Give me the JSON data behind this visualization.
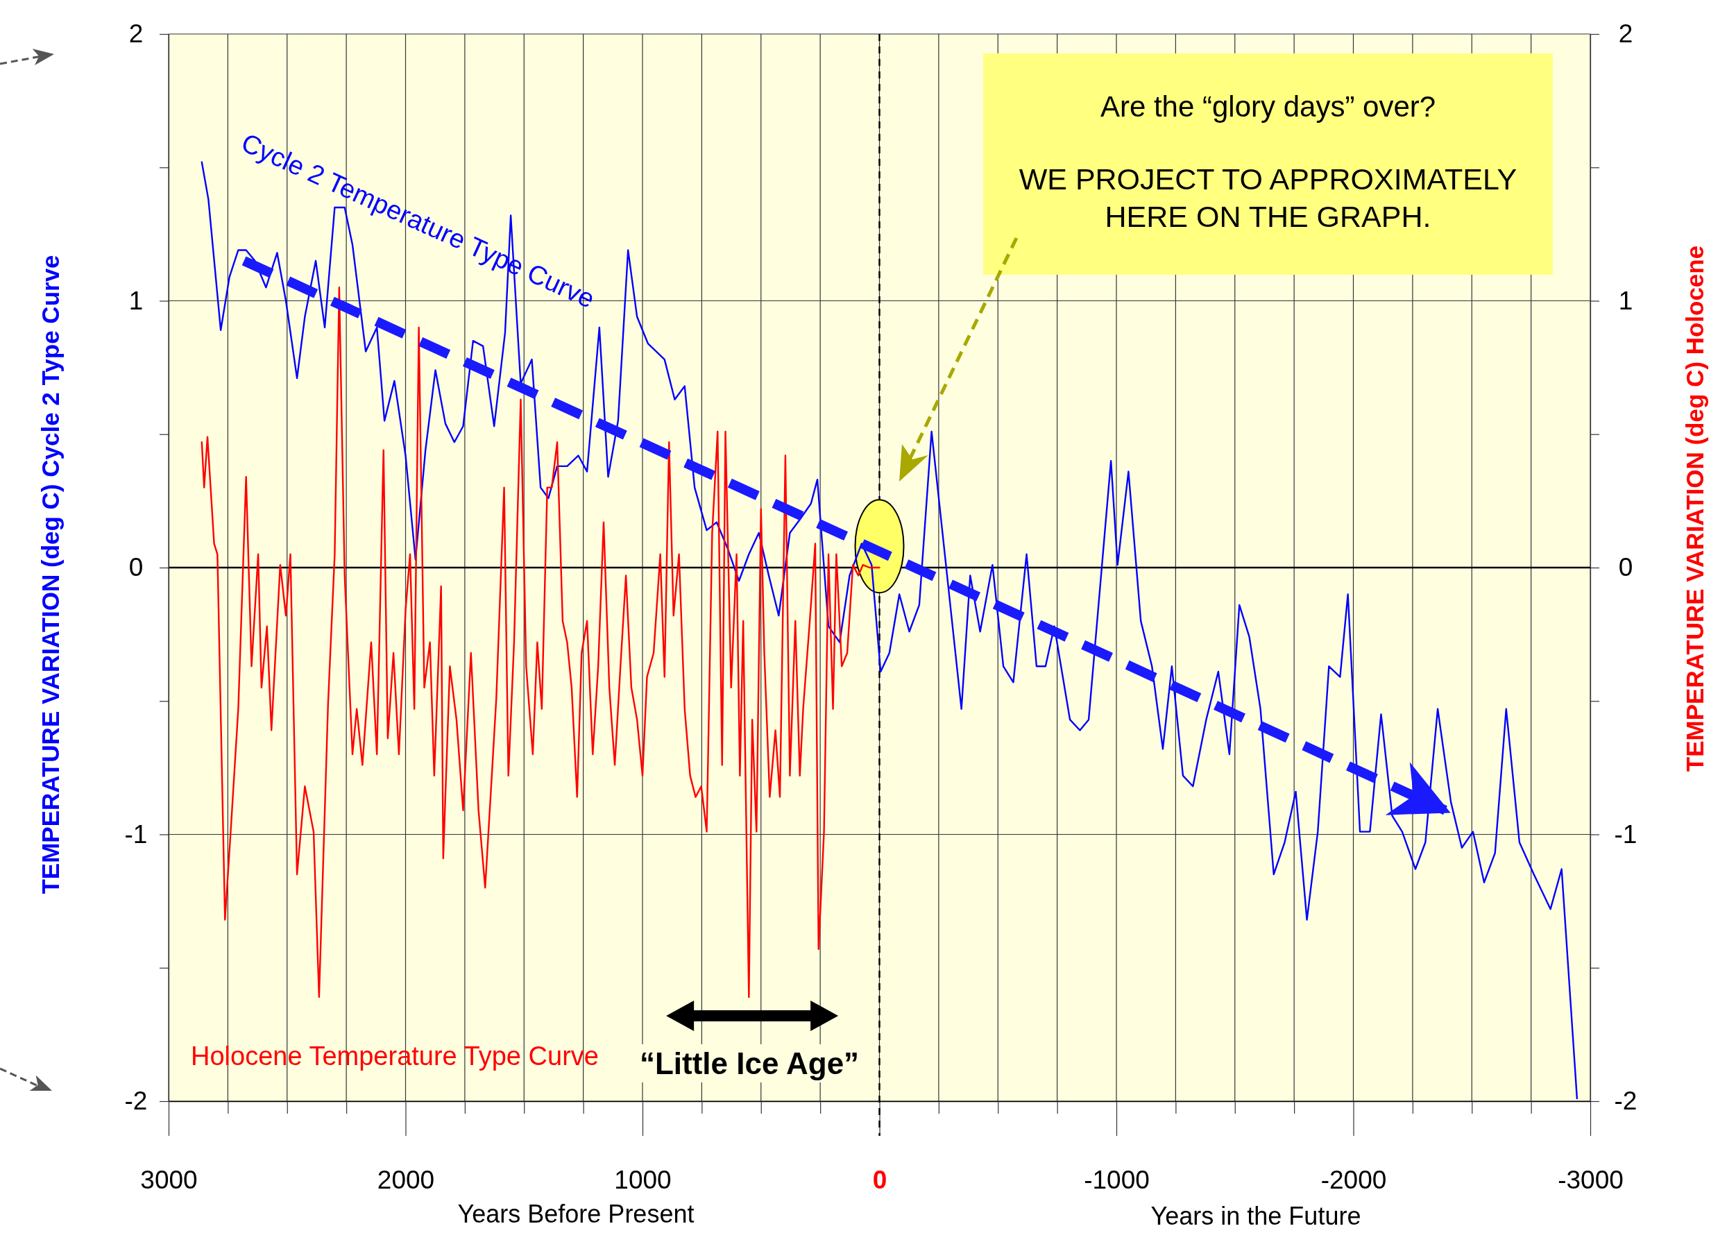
{
  "chart_data": {
    "type": "line",
    "xlabel": "Years Before Present",
    "ylabel": "TEMPERATURE VARIATION (deg C)  Cycle 2 Type Curve",
    "y2label": "TEMPERATURE VARIATION (deg C) Holocene",
    "xlim": [
      3000,
      -3000
    ],
    "xticks": [
      3000,
      {
        "value": 2750,
        "label": null
      },
      {
        "value": 2500,
        "label": null
      },
      {
        "value": 2250,
        "label": null
      },
      2000,
      {
        "value": 1750,
        "label": null
      },
      {
        "value": 1500,
        "label": null
      },
      {
        "value": 1250,
        "label": null
      },
      1000,
      {
        "value": 750,
        "label": null
      },
      {
        "value": 500,
        "label": null
      },
      {
        "value": 250,
        "label": null
      },
      0,
      {
        "value": -250,
        "label": null
      },
      {
        "value": -500,
        "label": null
      },
      {
        "value": -750,
        "label": null
      },
      -1000,
      {
        "value": -1250,
        "label": null
      },
      {
        "value": -1500,
        "label": null
      },
      {
        "value": -1750,
        "label": null
      },
      -2000,
      {
        "value": -2250,
        "label": null
      },
      {
        "value": -2500,
        "label": null
      },
      {
        "value": -2750,
        "label": null
      },
      -3000
    ],
    "ylim": [
      -2,
      2
    ],
    "yticks": [
      -2,
      {
        "value": -1.5,
        "label": null
      },
      -1,
      {
        "value": -0.5,
        "label": null
      },
      0,
      {
        "value": 0.5,
        "label": null
      },
      1,
      {
        "value": 1.5,
        "label": null
      },
      2
    ],
    "y2lim": [
      -2,
      2
    ],
    "y2ticks": [
      -2,
      {
        "value": -1.5,
        "label": null
      },
      -1,
      {
        "value": -0.5,
        "label": null
      },
      0,
      {
        "value": 0.5,
        "label": null
      },
      1,
      {
        "value": 1.5,
        "label": null
      },
      2
    ],
    "grid": true,
    "series": [
      {
        "name": "Cycle 2 Temperature Type Curve",
        "color": "#0000ff",
        "x": [
          2860,
          2832,
          2780,
          2743,
          2706,
          2673,
          2636,
          2589,
          2542,
          2505,
          2458,
          2425,
          2379,
          2341,
          2299,
          2257,
          2224,
          2168,
          2121,
          2089,
          2047,
          2000,
          1958,
          1916,
          1874,
          1832,
          1794,
          1757,
          1715,
          1673,
          1626,
          1580,
          1556,
          1514,
          1467,
          1430,
          1397,
          1360,
          1318,
          1271,
          1234,
          1182,
          1145,
          1103,
          1061,
          1023,
          977,
          907,
          864,
          822,
          780,
          729,
          687,
          640,
          593,
          551,
          509,
          467,
          425,
          378,
          336,
          289,
          262,
          215,
          168,
          126,
          75,
          33,
          -5,
          -42,
          -84,
          -126,
          -168,
          -220,
          -271,
          -346,
          -383,
          -425,
          -477,
          -523,
          -565,
          -621,
          -663,
          -701,
          -738,
          -804,
          -846,
          -883,
          -977,
          -1005,
          -1051,
          -1103,
          -1150,
          -1196,
          -1234,
          -1281,
          -1323,
          -1379,
          -1430,
          -1477,
          -1519,
          -1561,
          -1608,
          -1664,
          -1710,
          -1757,
          -1804,
          -1850,
          -1897,
          -1944,
          -1977,
          -2028,
          -2070,
          -2117,
          -2164,
          -2206,
          -2262,
          -2304,
          -2356,
          -2412,
          -2458,
          -2505,
          -2552,
          -2598,
          -2645,
          -2701,
          -2762,
          -2832,
          -2879,
          -2944
        ],
        "values": [
          1.52,
          1.38,
          0.89,
          1.09,
          1.19,
          1.19,
          1.15,
          1.05,
          1.18,
          1.0,
          0.71,
          0.94,
          1.15,
          0.9,
          1.35,
          1.35,
          1.21,
          0.81,
          0.9,
          0.55,
          0.7,
          0.42,
          0.03,
          0.44,
          0.74,
          0.54,
          0.47,
          0.53,
          0.85,
          0.83,
          0.53,
          0.88,
          1.32,
          0.69,
          0.78,
          0.3,
          0.26,
          0.38,
          0.38,
          0.42,
          0.36,
          0.9,
          0.34,
          0.55,
          1.19,
          0.94,
          0.84,
          0.78,
          0.63,
          0.68,
          0.3,
          0.14,
          0.17,
          0.07,
          -0.05,
          0.05,
          0.13,
          -0.03,
          -0.18,
          0.13,
          0.18,
          0.24,
          0.33,
          -0.22,
          -0.28,
          -0.03,
          0.09,
          0.01,
          -0.39,
          -0.32,
          -0.1,
          -0.24,
          -0.14,
          0.51,
          0.09,
          -0.53,
          -0.03,
          -0.24,
          0.01,
          -0.37,
          -0.43,
          0.05,
          -0.37,
          -0.37,
          -0.22,
          -0.57,
          -0.61,
          -0.57,
          0.4,
          0.01,
          0.36,
          -0.2,
          -0.37,
          -0.68,
          -0.37,
          -0.78,
          -0.82,
          -0.57,
          -0.39,
          -0.7,
          -0.14,
          -0.26,
          -0.53,
          -1.15,
          -1.03,
          -0.84,
          -1.32,
          -0.99,
          -0.37,
          -0.41,
          -0.1,
          -0.99,
          -0.99,
          -0.55,
          -0.93,
          -0.99,
          -1.13,
          -1.03,
          -0.53,
          -0.88,
          -1.05,
          -0.99,
          -1.18,
          -1.07,
          -0.53,
          -1.03,
          -1.15,
          -1.28,
          -1.13,
          -1.99
        ]
      },
      {
        "name": "Holocene Temperature Type Curve",
        "color": "#ff0000",
        "axis": "y2",
        "x": [
          2860,
          2850,
          2836,
          2808,
          2794,
          2762,
          2738,
          2706,
          2673,
          2650,
          2622,
          2608,
          2585,
          2566,
          2529,
          2505,
          2486,
          2458,
          2425,
          2388,
          2365,
          2327,
          2299,
          2280,
          2257,
          2224,
          2206,
          2182,
          2145,
          2121,
          2093,
          2075,
          2051,
          2028,
          2000,
          1981,
          1963,
          1944,
          1921,
          1897,
          1879,
          1850,
          1841,
          1813,
          1785,
          1757,
          1724,
          1692,
          1664,
          1636,
          1617,
          1584,
          1566,
          1542,
          1514,
          1491,
          1463,
          1444,
          1425,
          1402,
          1383,
          1360,
          1337,
          1318,
          1299,
          1276,
          1257,
          1234,
          1210,
          1187,
          1164,
          1140,
          1117,
          1093,
          1070,
          1047,
          1023,
          1000,
          981,
          953,
          925,
          907,
          888,
          869,
          846,
          822,
          799,
          776,
          752,
          729,
          706,
          683,
          664,
          650,
          626,
          603,
          589,
          575,
          551,
          537,
          519,
          500,
          486,
          463,
          439,
          420,
          397,
          378,
          355,
          336,
          322,
          294,
          271,
          257,
          234,
          215,
          196,
          182,
          159,
          136,
          112,
          89,
          70,
          42,
          0
        ],
        "values": [
          0.47,
          0.3,
          0.49,
          0.09,
          0.05,
          -1.32,
          -0.99,
          -0.53,
          0.34,
          -0.37,
          0.05,
          -0.45,
          -0.22,
          -0.61,
          0.01,
          -0.18,
          0.05,
          -1.15,
          -0.82,
          -0.99,
          -1.61,
          -0.51,
          0.05,
          1.05,
          -0.03,
          -0.7,
          -0.53,
          -0.74,
          -0.28,
          -0.7,
          0.44,
          -0.64,
          -0.32,
          -0.7,
          -0.16,
          0.05,
          -0.53,
          0.9,
          -0.45,
          -0.28,
          -0.78,
          -0.07,
          -1.09,
          -0.37,
          -0.57,
          -0.91,
          -0.32,
          -0.91,
          -1.2,
          -0.78,
          -0.49,
          0.3,
          -0.78,
          -0.28,
          0.63,
          -0.37,
          -0.7,
          -0.28,
          -0.53,
          0.3,
          0.3,
          0.47,
          -0.2,
          -0.28,
          -0.45,
          -0.86,
          -0.32,
          -0.2,
          -0.7,
          -0.37,
          0.17,
          -0.45,
          -0.74,
          -0.37,
          -0.03,
          -0.45,
          -0.57,
          -0.78,
          -0.41,
          -0.32,
          0.05,
          -0.41,
          0.47,
          -0.18,
          0.05,
          -0.53,
          -0.78,
          -0.86,
          -0.82,
          -0.99,
          0.13,
          0.51,
          -0.74,
          0.51,
          -0.45,
          0.05,
          -0.78,
          -0.2,
          -1.61,
          -0.57,
          -0.99,
          0.22,
          -0.32,
          -0.86,
          -0.61,
          -0.86,
          0.42,
          -0.78,
          -0.2,
          -0.78,
          -0.53,
          -0.2,
          0.09,
          -1.43,
          -0.99,
          0.05,
          -0.53,
          0.05,
          -0.37,
          -0.32,
          0.01,
          -0.03,
          0.01,
          0,
          0
        ]
      },
      {
        "color": "#1a1aff",
        "line_style": "dashed",
        "x": [
          2682,
          -2388
        ],
        "values": [
          1.15,
          -0.91
        ]
      }
    ],
    "ref_lines": [
      {
        "axis": "x",
        "value": 0,
        "line_style": "dashed",
        "color": "#000000"
      }
    ],
    "annotations": [
      "Are the “glory days” over?",
      "WE PROJECT TO APPROXIMATELY HERE ON THE GRAPH.",
      "“Little Ice Age”",
      "Years in the Future"
    ]
  }
}
